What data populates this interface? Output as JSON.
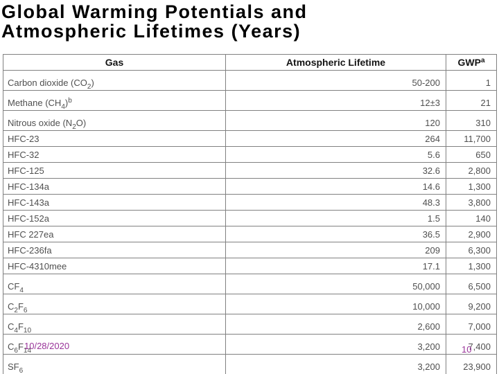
{
  "slide": {
    "title": "Global Warming Potentials and\nAtmospheric Lifetimes (Years)",
    "footer": {
      "date": "10/28/2020",
      "page_number": "10"
    }
  },
  "table": {
    "headers": {
      "gas": "Gas",
      "lifetime": "Atmospheric Lifetime",
      "gwp": "GWP^a^"
    },
    "rows": [
      {
        "gas": "Carbon dioxide (CO~2~)",
        "lifetime": "50-200",
        "gwp": "1"
      },
      {
        "gas": "Methane (CH~4~)^b^",
        "lifetime": "12±3",
        "gwp": "21"
      },
      {
        "gas": "Nitrous oxide (N~2~O)",
        "lifetime": "120",
        "gwp": "310"
      },
      {
        "gas": "HFC-23",
        "lifetime": "264",
        "gwp": "11,700"
      },
      {
        "gas": "HFC-32",
        "lifetime": "5.6",
        "gwp": "650"
      },
      {
        "gas": "HFC-125",
        "lifetime": "32.6",
        "gwp": "2,800"
      },
      {
        "gas": "HFC-134a",
        "lifetime": "14.6",
        "gwp": "1,300"
      },
      {
        "gas": "HFC-143a",
        "lifetime": "48.3",
        "gwp": "3,800"
      },
      {
        "gas": "HFC-152a",
        "lifetime": "1.5",
        "gwp": "140"
      },
      {
        "gas": "HFC 227ea",
        "lifetime": "36.5",
        "gwp": "2,900"
      },
      {
        "gas": "HFC-236fa",
        "lifetime": "209",
        "gwp": "6,300"
      },
      {
        "gas": "HFC-4310mee",
        "lifetime": "17.1",
        "gwp": "1,300"
      },
      {
        "gas": "CF~4~",
        "lifetime": "50,000",
        "gwp": "6,500"
      },
      {
        "gas": "C~2~F~6~",
        "lifetime": "10,000",
        "gwp": "9,200"
      },
      {
        "gas": "C~4~F~10~",
        "lifetime": "2,600",
        "gwp": "7,000"
      },
      {
        "gas": "C~6~F~14~",
        "lifetime": "3,200",
        "gwp": "7,400"
      },
      {
        "gas": "SF~6~",
        "lifetime": "3,200",
        "gwp": "23,900"
      }
    ]
  },
  "colors": {
    "accent_purple": "#993399",
    "border_gray": "#808080",
    "cell_text": "#4f4f4f",
    "header_text": "#141414",
    "title_text": "#000000"
  }
}
